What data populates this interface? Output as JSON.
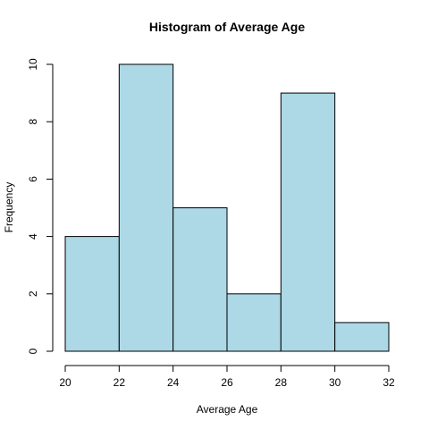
{
  "chart_data": {
    "type": "bar",
    "title": "Histogram of Average Age",
    "xlabel": "Average Age",
    "ylabel": "Frequency",
    "bins": [
      {
        "start": 20,
        "end": 22,
        "count": 4
      },
      {
        "start": 22,
        "end": 24,
        "count": 10
      },
      {
        "start": 24,
        "end": 26,
        "count": 5
      },
      {
        "start": 26,
        "end": 28,
        "count": 2
      },
      {
        "start": 28,
        "end": 30,
        "count": 9
      },
      {
        "start": 30,
        "end": 32,
        "count": 1
      }
    ],
    "xlim": [
      20,
      32
    ],
    "ylim": [
      0,
      10
    ],
    "xticks": [
      20,
      22,
      24,
      26,
      28,
      30,
      32
    ],
    "yticks": [
      0,
      2,
      4,
      6,
      8,
      10
    ],
    "bar_color": "#add8e6",
    "border_color": "#000000",
    "grid": false,
    "legend": "none"
  }
}
